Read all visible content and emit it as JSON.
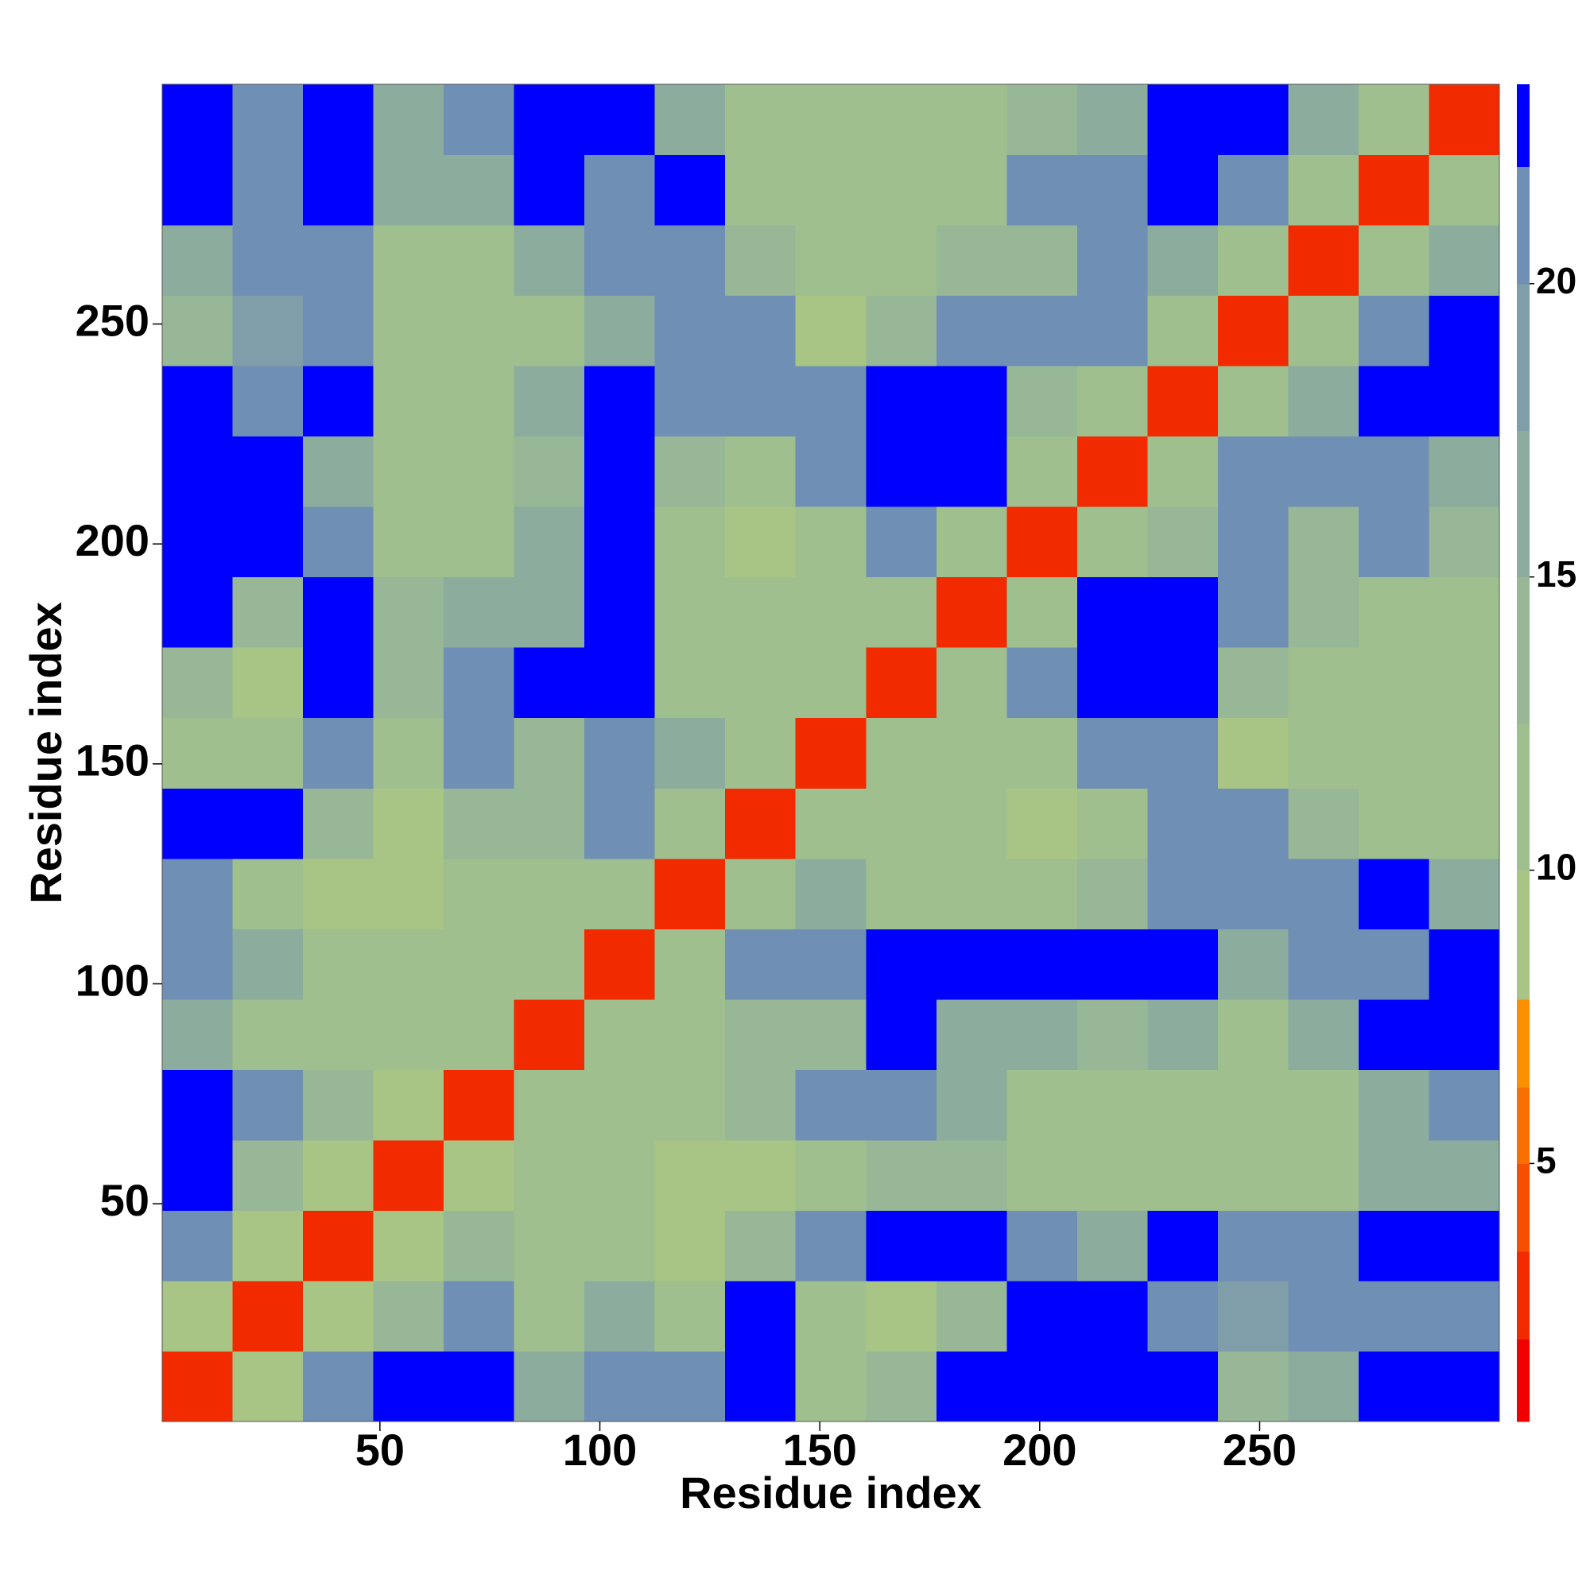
{
  "chart_data": {
    "type": "heatmap",
    "xlabel": "Residue index",
    "ylabel": "Residue index",
    "xlim": [
      0.5,
      304.5
    ],
    "ylim": [
      0.5,
      304.5
    ],
    "xticks": [
      50,
      100,
      150,
      200,
      250
    ],
    "yticks": [
      50,
      100,
      150,
      200,
      250
    ],
    "bins": [
      0.5,
      16.5,
      32.5,
      48.5,
      64.5,
      80.5,
      96.5,
      112.5,
      128.5,
      144.5,
      160.5,
      176.5,
      192.5,
      208.5,
      224.5,
      240.5,
      256.5,
      272.5,
      288.5,
      304.5
    ],
    "z": [
      [
        3,
        9,
        20,
        23,
        23,
        16,
        20,
        20,
        23,
        12,
        14,
        23,
        23,
        23,
        23,
        14,
        16,
        23,
        23
      ],
      [
        9,
        3,
        9,
        14,
        20,
        12,
        16,
        12,
        23,
        12,
        9,
        14,
        23,
        23,
        20,
        18,
        20,
        20,
        20
      ],
      [
        20,
        9,
        3,
        9,
        14,
        12,
        12,
        9,
        14,
        20,
        23,
        23,
        20,
        16,
        23,
        20,
        20,
        23,
        23
      ],
      [
        23,
        14,
        9,
        3,
        9,
        12,
        12,
        9,
        9,
        12,
        14,
        14,
        12,
        12,
        12,
        12,
        12,
        16,
        16
      ],
      [
        23,
        20,
        14,
        9,
        3,
        12,
        12,
        12,
        14,
        20,
        20,
        16,
        12,
        12,
        10,
        10,
        12,
        16,
        20
      ],
      [
        16,
        12,
        12,
        12,
        12,
        3,
        10,
        12,
        14,
        14,
        23,
        16,
        16,
        14,
        16,
        12,
        16,
        23,
        23
      ],
      [
        20,
        16,
        12,
        12,
        12,
        10,
        3,
        12,
        20,
        20,
        23,
        23,
        23,
        23,
        23,
        16,
        20,
        20,
        23
      ],
      [
        20,
        12,
        9,
        9,
        12,
        12,
        12,
        3,
        12,
        16,
        12,
        10,
        12,
        14,
        20,
        20,
        20,
        23,
        16
      ],
      [
        23,
        23,
        14,
        9,
        14,
        14,
        20,
        12,
        3,
        10,
        12,
        12,
        9,
        12,
        20,
        20,
        14,
        12,
        12
      ],
      [
        12,
        12,
        20,
        12,
        20,
        14,
        20,
        16,
        10,
        3,
        10,
        12,
        12,
        20,
        20,
        9,
        12,
        12,
        12
      ],
      [
        14,
        9,
        23,
        14,
        20,
        23,
        23,
        12,
        12,
        10,
        3,
        10,
        20,
        23,
        23,
        14,
        12,
        12,
        12
      ],
      [
        23,
        14,
        23,
        14,
        16,
        16,
        23,
        10,
        12,
        12,
        10,
        3,
        12,
        23,
        23,
        20,
        14,
        12,
        12
      ],
      [
        23,
        23,
        20,
        12,
        12,
        16,
        23,
        12,
        9,
        12,
        20,
        12,
        3,
        10,
        14,
        20,
        14,
        20,
        14
      ],
      [
        23,
        23,
        16,
        12,
        12,
        14,
        23,
        14,
        12,
        20,
        23,
        23,
        10,
        3,
        10,
        20,
        20,
        20,
        16
      ],
      [
        23,
        20,
        23,
        12,
        10,
        16,
        23,
        20,
        20,
        20,
        23,
        23,
        14,
        10,
        3,
        10,
        16,
        23,
        23
      ],
      [
        14,
        18,
        20,
        12,
        10,
        12,
        16,
        20,
        20,
        9,
        14,
        20,
        20,
        20,
        10,
        3,
        10,
        20,
        23
      ],
      [
        16,
        20,
        20,
        12,
        12,
        16,
        20,
        20,
        14,
        12,
        12,
        14,
        14,
        20,
        16,
        10,
        3,
        10,
        16
      ],
      [
        23,
        20,
        23,
        16,
        16,
        23,
        20,
        23,
        12,
        12,
        12,
        12,
        20,
        20,
        23,
        20,
        10,
        3,
        10
      ],
      [
        23,
        20,
        23,
        16,
        20,
        23,
        23,
        16,
        12,
        12,
        12,
        12,
        14,
        16,
        23,
        23,
        16,
        10,
        3
      ]
    ],
    "colorbar": {
      "lim": [
        0.6,
        23.4
      ],
      "ticks": [
        5,
        10,
        15,
        20
      ],
      "boundaries": [
        0.6,
        2,
        3.5,
        5,
        6.3,
        7.8,
        10,
        12.5,
        15,
        17.5,
        20,
        22,
        23.4
      ],
      "colors": [
        "#f00000",
        "#f22a00",
        "#f55000",
        "#f77000",
        "#fa9000",
        "#a9c586",
        "#9fbf8e",
        "#97b796",
        "#8cac9e",
        "#7f9eaa",
        "#6f8fb4",
        "#0000ff"
      ]
    }
  }
}
